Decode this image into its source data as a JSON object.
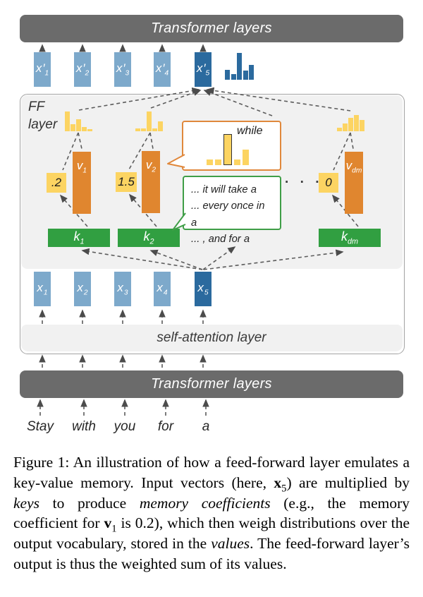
{
  "figure": {
    "top_bar_label": "Transformer layers",
    "bottom_bar_label": "Transformer layers",
    "self_attention_label": "self-attention layer",
    "ff_label_line1": "FF",
    "ff_label_line2": "layer",
    "ellipsis": "· · ·",
    "input_words": [
      "Stay",
      "with",
      "you",
      "for",
      "a"
    ],
    "top_vectors": [
      {
        "base": "x",
        "prime": "′",
        "sub": "1",
        "tone": "light"
      },
      {
        "base": "x",
        "prime": "′",
        "sub": "2",
        "tone": "light"
      },
      {
        "base": "x",
        "prime": "′",
        "sub": "3",
        "tone": "light"
      },
      {
        "base": "x",
        "prime": "′",
        "sub": "4",
        "tone": "light"
      },
      {
        "base": "x",
        "prime": "′",
        "sub": "5",
        "tone": "dark"
      }
    ],
    "bottom_vectors": [
      {
        "base": "x",
        "sub": "1",
        "tone": "light"
      },
      {
        "base": "x",
        "sub": "2",
        "tone": "light"
      },
      {
        "base": "x",
        "sub": "3",
        "tone": "light"
      },
      {
        "base": "x",
        "sub": "4",
        "tone": "light"
      },
      {
        "base": "x",
        "sub": "5",
        "tone": "dark"
      }
    ],
    "memories": [
      {
        "coef": ".2",
        "key_base": "k",
        "key_sub": "1",
        "value_base": "v",
        "value_sub": "1"
      },
      {
        "coef": "1.5",
        "key_base": "k",
        "key_sub": "2",
        "value_base": "v",
        "value_sub": "2"
      },
      {
        "coef": "0",
        "key_base": "k",
        "key_sub": "dm",
        "value_base": "v",
        "value_sub": "dm"
      }
    ],
    "bubbles": {
      "value_bubble": {
        "label": "while"
      },
      "key_bubble": {
        "lines": [
          "... it will take a",
          "... every once in a",
          "... , and for a"
        ]
      }
    }
  },
  "histograms": {
    "output_distribution": {
      "color": "#2b6a9e",
      "heights": [
        14,
        8,
        38,
        13,
        21
      ]
    },
    "v1_distribution": {
      "color": "#fcd462",
      "heights": [
        28,
        10,
        17,
        6,
        3
      ]
    },
    "v2_distribution": {
      "color": "#fcd462",
      "heights": [
        4,
        4,
        28,
        4,
        14
      ]
    },
    "vdm_distribution": {
      "color": "#fcd462",
      "heights": [
        5,
        11,
        19,
        23,
        16
      ]
    },
    "bubble_distribution": {
      "color": "#fcd462",
      "heights": [
        8,
        8,
        42,
        8,
        22
      ],
      "highlight_index": 2
    }
  },
  "colors": {
    "dark_bar": "#6b6b6b",
    "light_blue": "#7da9cb",
    "dark_blue": "#2b6a9e",
    "orange": "#e0862f",
    "yellow": "#fcd462",
    "green": "#319f41",
    "bubble_orange_border": "#e0883c",
    "bubble_green_border": "#3f9e47",
    "panel_gray": "#f1f1f1"
  },
  "caption": {
    "segments": [
      {
        "t": "Figure 1:  An illustration of how a feed-forward layer emulates a key-value memory. Input vectors (here, "
      },
      {
        "t": "x",
        "b": true
      },
      {
        "t": "5",
        "sub": true
      },
      {
        "t": ") are multiplied by "
      },
      {
        "t": "keys",
        "i": true
      },
      {
        "t": " to produce "
      },
      {
        "t": "memory coefficients",
        "i": true
      },
      {
        "t": " (e.g., the memory coefficient for "
      },
      {
        "t": "v",
        "b": true
      },
      {
        "t": "1",
        "sub": true
      },
      {
        "t": " is 0.2), which then weigh distributions over the output vocabulary, stored in the "
      },
      {
        "t": "values",
        "i": true
      },
      {
        "t": ".  The feed-forward layer’s output is thus the weighted sum of its values."
      }
    ]
  }
}
